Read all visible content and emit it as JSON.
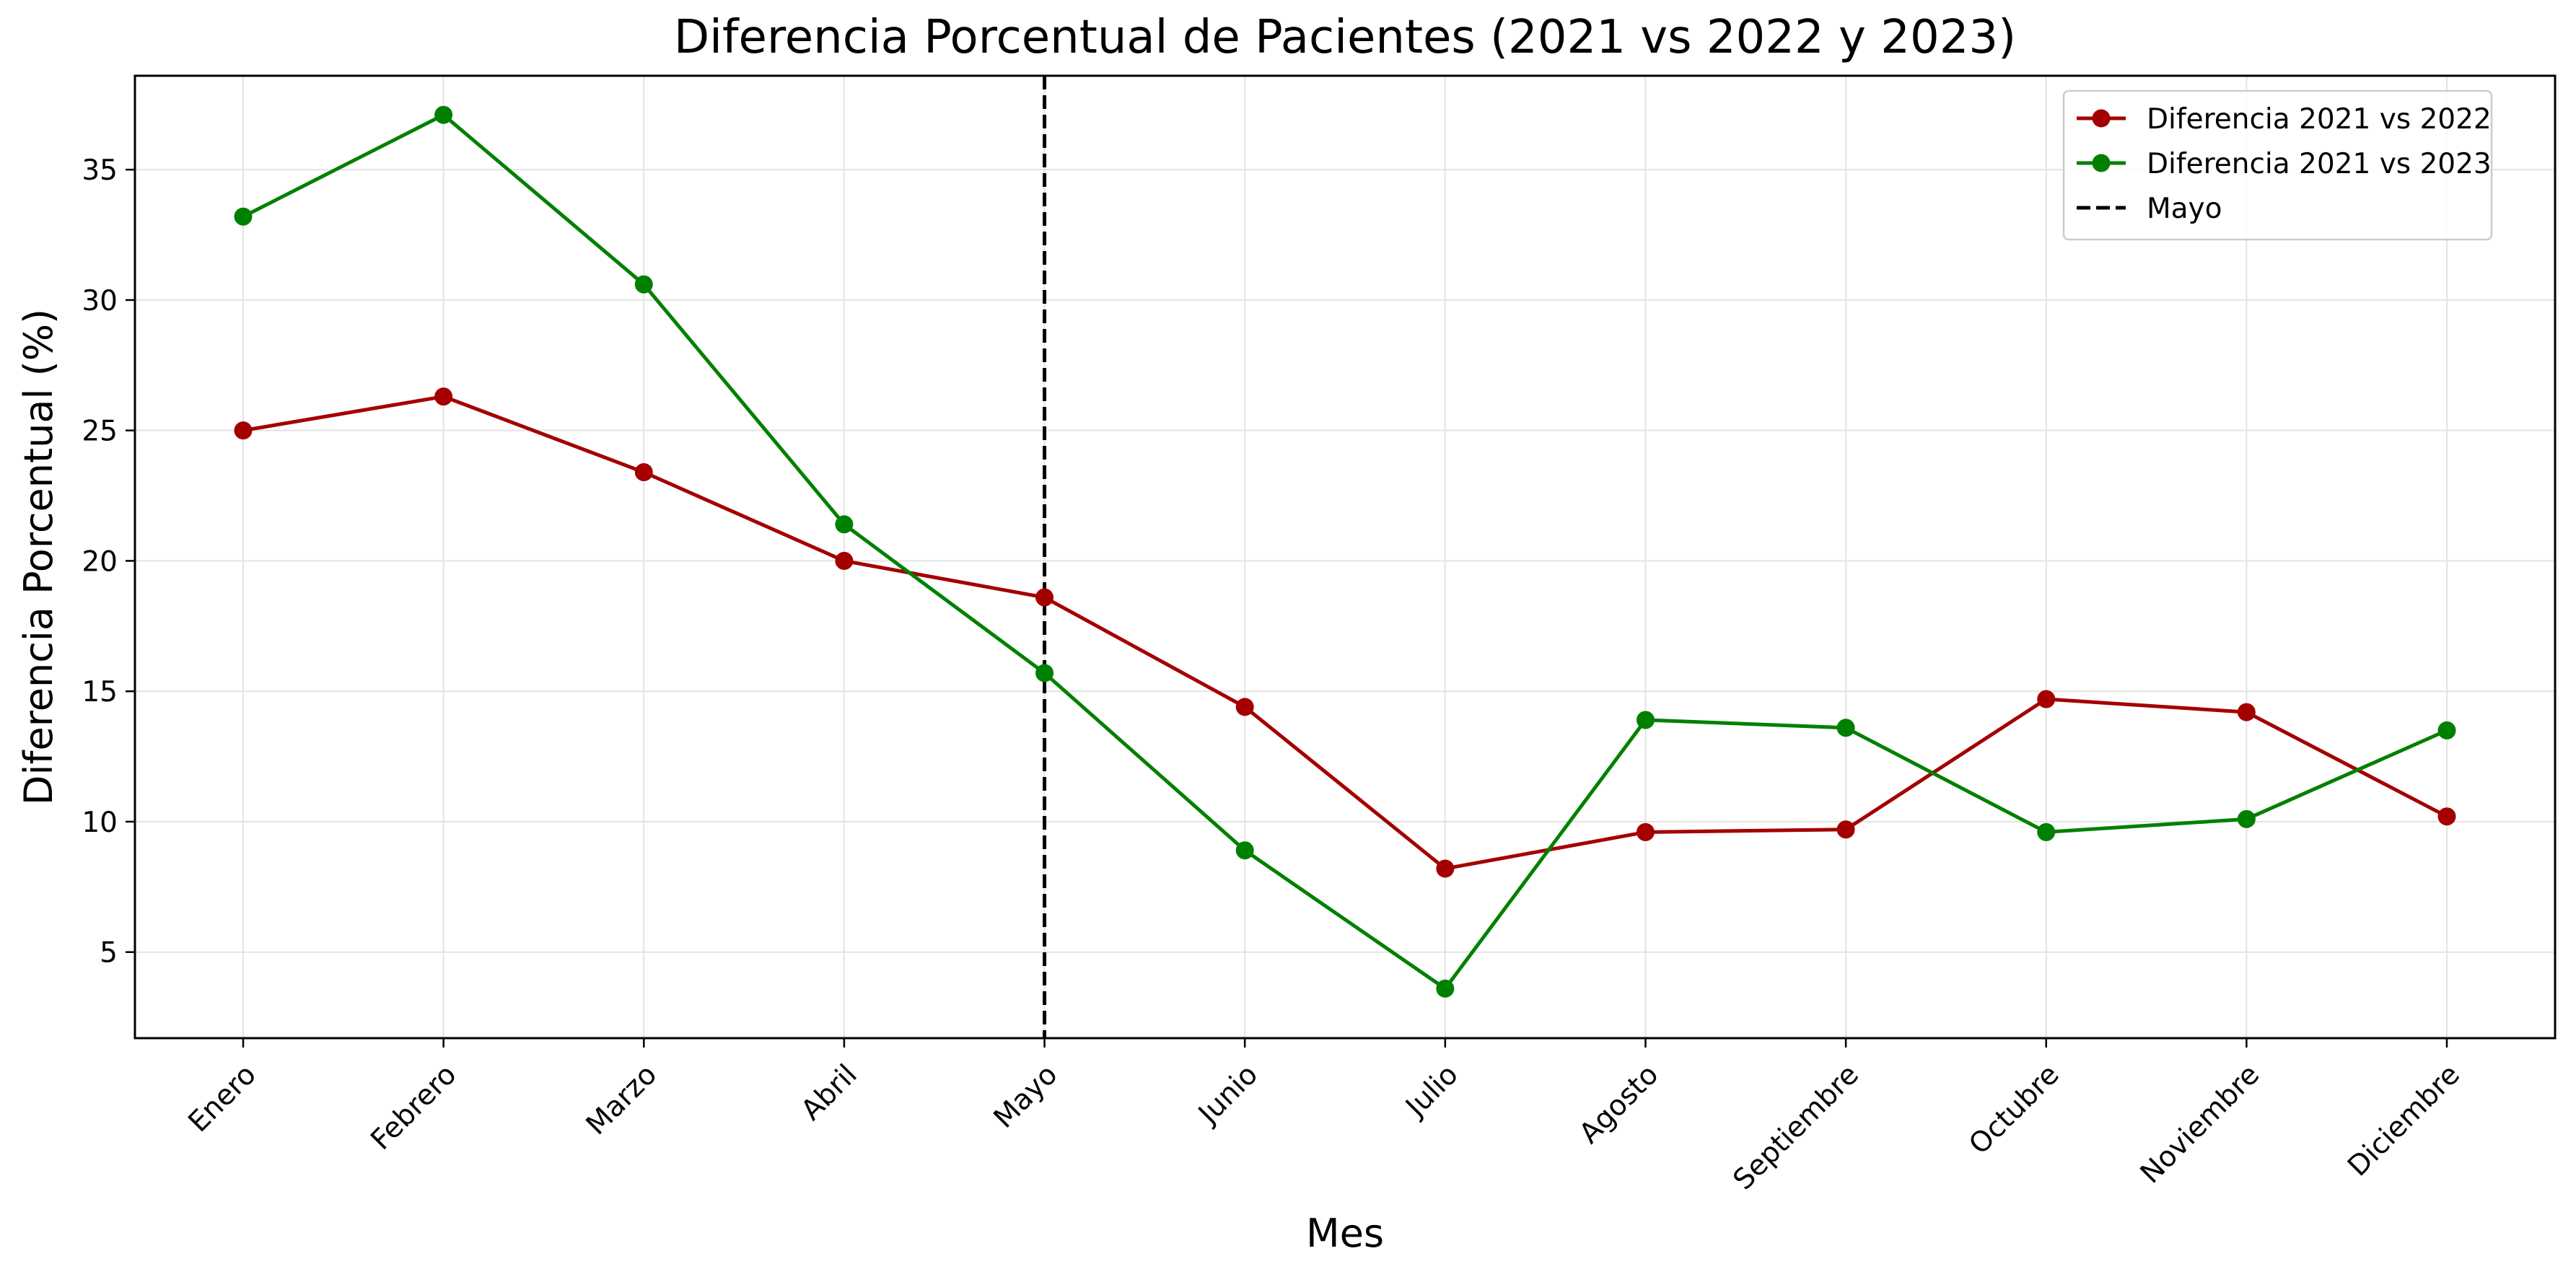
{
  "chart_data": {
    "type": "line",
    "title": "Diferencia Porcentual de Pacientes (2021 vs 2022 y 2023)",
    "xlabel": "Mes",
    "ylabel": "Diferencia Porcentual (%)",
    "categories": [
      "Enero",
      "Febrero",
      "Marzo",
      "Abril",
      "Mayo",
      "Junio",
      "Julio",
      "Agosto",
      "Septiembre",
      "Octubre",
      "Noviembre",
      "Diciembre"
    ],
    "ylim": [
      1.7,
      38.6
    ],
    "yticks": [
      5,
      10,
      15,
      20,
      25,
      30,
      35
    ],
    "grid": true,
    "legend_position": "top-right",
    "series": [
      {
        "name": "Diferencia 2021 vs 2022",
        "color": "#a40000",
        "marker": "circle",
        "values": [
          25.0,
          26.3,
          23.4,
          20.0,
          18.6,
          14.4,
          8.2,
          9.6,
          9.7,
          14.7,
          14.2,
          10.2
        ]
      },
      {
        "name": "Diferencia 2021 vs 2023",
        "color": "#008000",
        "marker": "circle",
        "values": [
          33.2,
          37.1,
          30.6,
          21.4,
          15.7,
          8.9,
          3.6,
          13.9,
          13.6,
          9.6,
          10.1,
          13.5
        ]
      }
    ],
    "vline": {
      "label": "Mayo",
      "category": "Mayo",
      "color": "#000000",
      "style": "dashed"
    }
  }
}
